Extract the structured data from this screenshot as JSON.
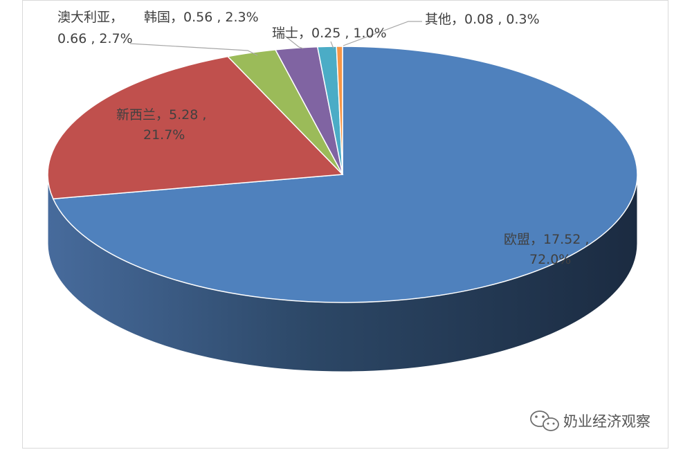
{
  "chart_data": {
    "type": "pie",
    "title": "",
    "unit_note": "",
    "slices": [
      {
        "name": "欧盟",
        "value": 17.52,
        "value_text": "17.52",
        "percent_text": "72.0%",
        "color": "#4f81bd"
      },
      {
        "name": "新西兰",
        "value": 5.28,
        "value_text": "5.28",
        "percent_text": "21.7%",
        "color": "#c0504d"
      },
      {
        "name": "澳大利亚",
        "value": 0.66,
        "value_text": "0.66",
        "percent_text": "2.7%",
        "color": "#9bbb59"
      },
      {
        "name": "韩国",
        "value": 0.56,
        "value_text": "0.56",
        "percent_text": "2.3%",
        "color": "#8064a2"
      },
      {
        "name": "瑞士",
        "value": 0.25,
        "value_text": "0.25",
        "percent_text": "1.0%",
        "color": "#4bacc6"
      },
      {
        "name": "其他",
        "value": 0.08,
        "value_text": "0.08",
        "percent_text": "0.3%",
        "color": "#f79646"
      }
    ],
    "labels": {
      "eu_line1": "欧盟，17.52 ,",
      "eu_line2": "72.0%",
      "nz_line1": "新西兰，5.28 ,",
      "nz_line2": "21.7%",
      "au_line1": "澳大利亚，",
      "au_line2": "0.66 , 2.7%",
      "kr": "韩国，0.56 , 2.3%",
      "ch": "瑞士，0.25 , 1.0%",
      "other": "其他，0.08 , 0.3%"
    },
    "style": "3d-pie",
    "legend": "none"
  },
  "watermark": {
    "text": "奶业经济观察",
    "icon": "wechat-icon"
  }
}
